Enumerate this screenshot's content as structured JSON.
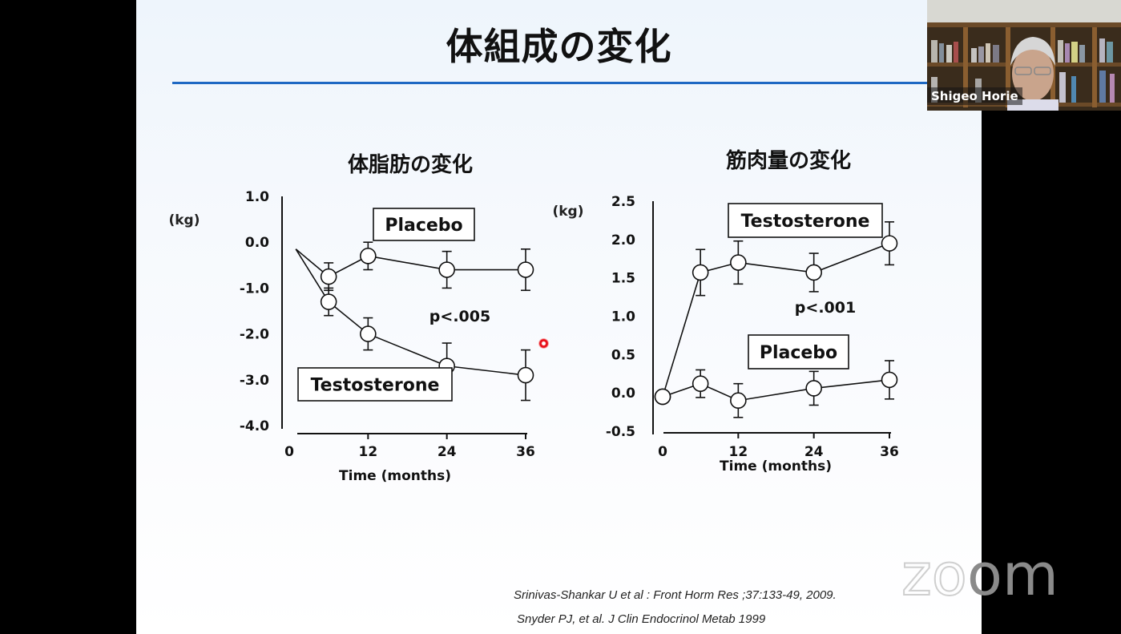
{
  "slide": {
    "title": "体組成の変化",
    "accent_color": "#1e68c3",
    "citations": [
      "Srinivas-Shankar U et al : Front Horm Res ;37:133-49, 2009.",
      "Snyder PJ, et al. J Clin Endocrinol Metab 1999"
    ]
  },
  "webcam": {
    "participant_name": "Shigeo Horie"
  },
  "watermark": {
    "logo_text": "zoom"
  },
  "chart_data": [
    {
      "type": "line",
      "title": "体脂肪の変化",
      "unit_label": "(kg)",
      "xlabel": "Time (months)",
      "ylabel": "(kg)",
      "x_ticks": [
        "0",
        "12",
        "24",
        "36"
      ],
      "y_ticks": [
        "1.0",
        "0.0",
        "-1.0",
        "-2.0",
        "-3.0",
        "-4.0"
      ],
      "ylim": [
        -4.0,
        1.0
      ],
      "xlim": [
        0,
        36
      ],
      "grid": false,
      "annotation": "p<.005",
      "series": [
        {
          "name": "Placebo",
          "x": [
            1,
            6,
            12,
            24,
            36
          ],
          "values": [
            -0.15,
            -0.75,
            -0.3,
            -0.6,
            -0.6
          ],
          "err": [
            0,
            0.3,
            0.3,
            0.4,
            0.45
          ]
        },
        {
          "name": "Testosterone",
          "x": [
            1,
            6,
            12,
            24,
            36
          ],
          "values": [
            -0.15,
            -1.3,
            -2.0,
            -2.7,
            -2.9
          ],
          "err": [
            0,
            0.3,
            0.35,
            0.5,
            0.55
          ]
        }
      ]
    },
    {
      "type": "line",
      "title": "筋肉量の変化",
      "unit_label": "(kg)",
      "xlabel": "Time (months)",
      "ylabel": "(kg)",
      "x_ticks": [
        "0",
        "12",
        "24",
        "36"
      ],
      "y_ticks": [
        "2.5",
        "2.0",
        "1.5",
        "1.0",
        "0.5",
        "0.0",
        "-0.5"
      ],
      "ylim": [
        -0.5,
        2.5
      ],
      "xlim": [
        0,
        36
      ],
      "grid": false,
      "annotation": "p<.001",
      "series": [
        {
          "name": "Testosterone",
          "x": [
            0,
            6,
            12,
            24,
            36
          ],
          "values": [
            -0.05,
            1.57,
            1.7,
            1.57,
            1.95
          ],
          "err": [
            0,
            0.3,
            0.28,
            0.25,
            0.28
          ]
        },
        {
          "name": "Placebo",
          "x": [
            0,
            6,
            12,
            24,
            36
          ],
          "values": [
            -0.05,
            0.12,
            -0.1,
            0.06,
            0.17
          ],
          "err": [
            0,
            0.18,
            0.22,
            0.22,
            0.25
          ]
        }
      ]
    }
  ]
}
